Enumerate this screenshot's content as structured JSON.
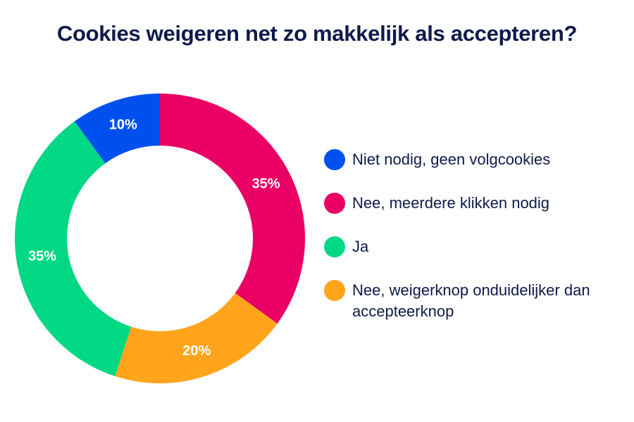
{
  "title": "Cookies weigeren net zo makkelijk als accepteren?",
  "legend": [
    {
      "label": "Niet nodig, geen volgcookies",
      "color": "#0050f0"
    },
    {
      "label": "Nee, meerdere klikken nodig",
      "color": "#ea0064"
    },
    {
      "label": "Ja",
      "color": "#00d884"
    },
    {
      "label": "Nee, weigerknop onduidelijker dan accepteerknop",
      "color": "#ffa41b"
    }
  ],
  "slices": [
    {
      "label": "35%",
      "name": "Nee, meerdere klikken nodig",
      "value": 35,
      "color": "#ea0064"
    },
    {
      "label": "20%",
      "name": "Nee, weigerknop onduidelijker dan accepteerknop",
      "value": 20,
      "color": "#ffa41b"
    },
    {
      "label": "35%",
      "name": "Ja",
      "value": 35,
      "color": "#00d884"
    },
    {
      "label": "10%",
      "name": "Niet nodig, geen volgcookies",
      "value": 10,
      "color": "#0050f0"
    }
  ],
  "chart_data": {
    "type": "pie",
    "title": "Cookies weigeren net zo makkelijk als accepteren?",
    "donut": true,
    "categories": [
      "Niet nodig, geen volgcookies",
      "Nee, meerdere klikken nodig",
      "Ja",
      "Nee, weigerknop onduidelijker dan accepteerknop"
    ],
    "values": [
      10,
      35,
      35,
      20
    ],
    "unit": "%",
    "colors": [
      "#0050f0",
      "#ea0064",
      "#00d884",
      "#ffa41b"
    ],
    "legend_position": "right"
  }
}
